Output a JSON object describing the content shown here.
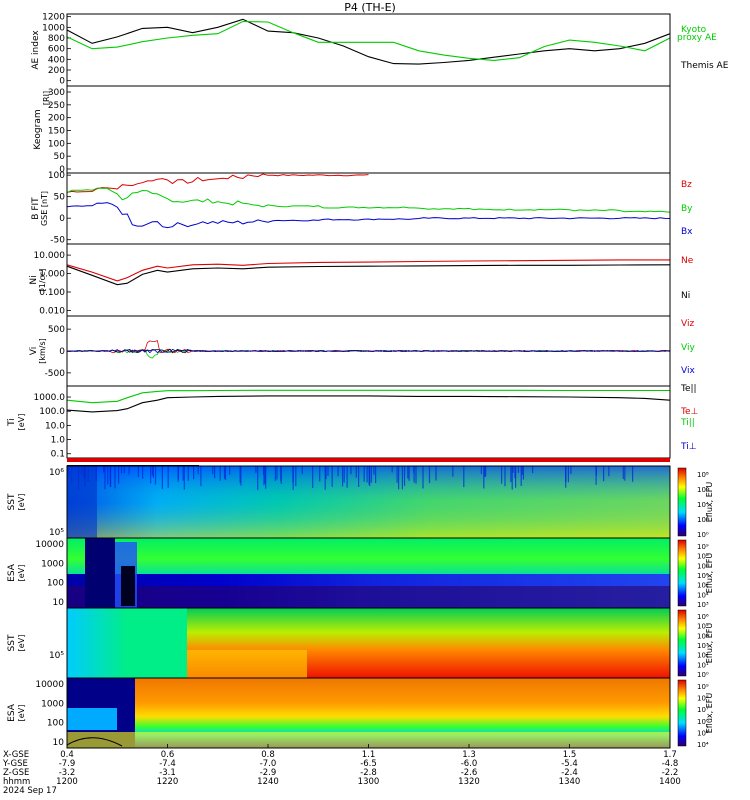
{
  "title": "P4 (TH-E)",
  "date_label": "2024 Sep 17",
  "orbit_labels": [
    "X-GSE",
    "Y-GSE",
    "Z-GSE",
    "hhmm"
  ],
  "orbit": [
    {
      "x": "0.4",
      "y": "-7.9",
      "z": "-3.2",
      "t": "1200"
    },
    {
      "x": "0.6",
      "y": "-7.4",
      "z": "-3.1",
      "t": "1220"
    },
    {
      "x": "0.8",
      "y": "-7.0",
      "z": "-2.9",
      "t": "1240"
    },
    {
      "x": "1.1",
      "y": "-6.5",
      "z": "-2.8",
      "t": "1300"
    },
    {
      "x": "1.3",
      "y": "-6.0",
      "z": "-2.6",
      "t": "1320"
    },
    {
      "x": "1.5",
      "y": "-5.4",
      "z": "-2.4",
      "t": "1340"
    },
    {
      "x": "1.7",
      "y": "-4.8",
      "z": "-2.2",
      "t": "1400"
    }
  ],
  "colors": {
    "kyoto": "#00cc00",
    "themis": "#000000",
    "bz": "#dd0000",
    "by": "#00cc00",
    "bx": "#0000cc",
    "ne": "#dd0000",
    "ni": "#000000"
  },
  "chart_data": [
    {
      "type": "line",
      "panel": "ae",
      "ylabel": "AE index",
      "yticks": [
        "0",
        "200",
        "400",
        "600",
        "800",
        "1000",
        "1200"
      ],
      "ylim": [
        -100,
        1250
      ],
      "x": [
        1200,
        1205,
        1210,
        1215,
        1220,
        1225,
        1230,
        1235,
        1240,
        1245,
        1250,
        1255,
        1300,
        1305,
        1310,
        1315,
        1320,
        1325,
        1330,
        1335,
        1340,
        1345,
        1350,
        1355,
        1400
      ],
      "series": [
        {
          "name": "Themis AE",
          "color_key": "themis",
          "values": [
            950,
            700,
            820,
            980,
            1000,
            900,
            1000,
            1150,
            930,
            900,
            800,
            650,
            450,
            320,
            310,
            340,
            380,
            440,
            500,
            560,
            600,
            560,
            600,
            700,
            880
          ]
        },
        {
          "name": "Kyoto proxy AE",
          "color_key": "kyoto",
          "values": [
            820,
            600,
            630,
            730,
            800,
            850,
            880,
            1110,
            1100,
            900,
            720,
            720,
            720,
            720,
            560,
            480,
            420,
            380,
            430,
            640,
            760,
            720,
            650,
            560,
            800
          ]
        }
      ],
      "legend": [
        "Kyoto",
        "proxy AE",
        "Themis AE"
      ]
    },
    {
      "type": "heatmap",
      "panel": "keogram",
      "ylabel": "Keogram",
      "yunit": "[RI]",
      "yticks": [
        "0",
        "50",
        "100",
        "150",
        "200",
        "250",
        "300"
      ],
      "values": []
    },
    {
      "type": "line",
      "panel": "bfield",
      "ylabel": "B FIT",
      "yunit": "GSE [nT]",
      "yticks": [
        "-50",
        "0",
        "50",
        "100"
      ],
      "ylim": [
        -60,
        105
      ],
      "x": [
        1200,
        1205,
        1208,
        1210,
        1212,
        1214,
        1216,
        1218,
        1220,
        1225,
        1230,
        1235,
        1240,
        1250,
        1300,
        1310,
        1320,
        1330,
        1340,
        1350,
        1400
      ],
      "series": [
        {
          "name": "Bz",
          "color_key": "bz",
          "values": [
            60,
            62,
            70,
            70,
            75,
            80,
            85,
            90,
            92,
            85,
            90,
            95,
            100,
            100,
            100,
            null,
            null,
            null,
            null,
            null,
            null
          ]
        },
        {
          "name": "By",
          "color_key": "by",
          "values": [
            60,
            65,
            70,
            60,
            45,
            55,
            60,
            55,
            50,
            40,
            40,
            35,
            30,
            28,
            25,
            25,
            22,
            20,
            20,
            18,
            15
          ]
        },
        {
          "name": "Bx",
          "color_key": "bx",
          "values": [
            25,
            28,
            35,
            30,
            10,
            -20,
            -15,
            -5,
            -20,
            -15,
            -10,
            -10,
            -8,
            -5,
            -3,
            -2,
            0,
            0,
            0,
            0,
            0
          ]
        }
      ]
    },
    {
      "type": "line",
      "panel": "density",
      "ylabel": "Ni",
      "yunit": "[1/cc]",
      "yscale": "log",
      "yticks": [
        "0.010",
        "0.100",
        "1.000",
        "10.000"
      ],
      "ylim": [
        0.005,
        40
      ],
      "x": [
        1200,
        1205,
        1210,
        1212,
        1215,
        1218,
        1220,
        1225,
        1230,
        1235,
        1240,
        1250,
        1300,
        1310,
        1320,
        1330,
        1340,
        1350,
        1400
      ],
      "series": [
        {
          "name": "Ne",
          "color_key": "ne",
          "values": [
            3,
            1.2,
            0.4,
            0.6,
            1.5,
            2.5,
            2,
            3,
            3.2,
            2.8,
            3.5,
            4,
            4.2,
            4.5,
            4.8,
            5,
            5.2,
            5.5,
            5.5
          ]
        },
        {
          "name": "Ni",
          "color_key": "ni",
          "values": [
            2.5,
            0.8,
            0.25,
            0.3,
            0.9,
            1.5,
            1.2,
            1.8,
            2,
            1.8,
            2.2,
            2.4,
            2.5,
            2.6,
            2.7,
            2.8,
            2.8,
            2.9,
            3
          ]
        }
      ]
    },
    {
      "type": "line",
      "panel": "velocity",
      "ylabel": "Vi",
      "yunit": "[km/s]",
      "yticks": [
        "-500",
        "0",
        "500"
      ],
      "ylim": [
        -800,
        800
      ],
      "series_names": [
        "Viz",
        "Viy",
        "Vix"
      ]
    },
    {
      "type": "line",
      "panel": "temperature",
      "ylabel": "Ti",
      "yunit": "[eV]",
      "yscale": "log",
      "yticks": [
        "0.1",
        "1.0",
        "10.0",
        "100.0",
        "1000.0"
      ],
      "ylim": [
        0.05,
        6000
      ],
      "x": [
        1200,
        1205,
        1210,
        1212,
        1215,
        1218,
        1220,
        1225,
        1230,
        1240,
        1250,
        1300,
        1310,
        1320,
        1330,
        1340,
        1350,
        1355,
        1400
      ],
      "series": [
        {
          "name": "Te||",
          "color_key": "ni",
          "values": [
            120,
            90,
            110,
            150,
            400,
            600,
            900,
            1000,
            1100,
            1200,
            1200,
            1200,
            1100,
            1100,
            1050,
            1000,
            900,
            800,
            600
          ]
        },
        {
          "name": "Ti||",
          "color_key": "by",
          "values": [
            600,
            400,
            500,
            900,
            2000,
            2500,
            2800,
            2800,
            2900,
            3000,
            3000,
            3000,
            3000,
            3000,
            3000,
            2900,
            2900,
            2900,
            2900
          ]
        }
      ],
      "legend": [
        "Te||",
        "Te⊥",
        "Ti||",
        "Ti⊥"
      ]
    },
    {
      "type": "heatmap",
      "panel": "sst_e",
      "ylabel": "SST",
      "yunit": "[eV]",
      "yticks": [
        "10⁵",
        "10⁶"
      ],
      "cbar_label": "Eflux, EFU",
      "cbar_ticks": [
        "10⁸",
        "10⁶",
        "10⁴",
        "10²",
        "10⁰"
      ]
    },
    {
      "type": "heatmap",
      "panel": "esa_e",
      "ylabel": "ESA",
      "yunit": "[eV]",
      "yticks": [
        "10",
        "100",
        "1000",
        "10000"
      ],
      "cbar_label": "Eflux, EFU",
      "cbar_ticks": [
        "10⁹",
        "10⁸",
        "10⁷",
        "10⁶",
        "10⁵",
        "10⁴",
        "10³"
      ]
    },
    {
      "type": "heatmap",
      "panel": "sst_i",
      "ylabel": "SST",
      "yunit": "[eV]",
      "yticks": [
        "10⁵"
      ],
      "cbar_label": "Eflux, EFU",
      "cbar_ticks": [
        "10⁶",
        "10⁵",
        "10⁴",
        "10³",
        "10²",
        "10¹",
        "10⁰"
      ]
    },
    {
      "type": "heatmap",
      "panel": "esa_i",
      "ylabel": "ESA",
      "yunit": "[eV]",
      "yticks": [
        "10",
        "100",
        "1000",
        "10000"
      ],
      "cbar_label": "Eflux, EFU",
      "cbar_ticks": [
        "10⁹",
        "10⁸",
        "10⁷",
        "10⁶",
        "10⁵",
        "10⁴"
      ]
    }
  ]
}
